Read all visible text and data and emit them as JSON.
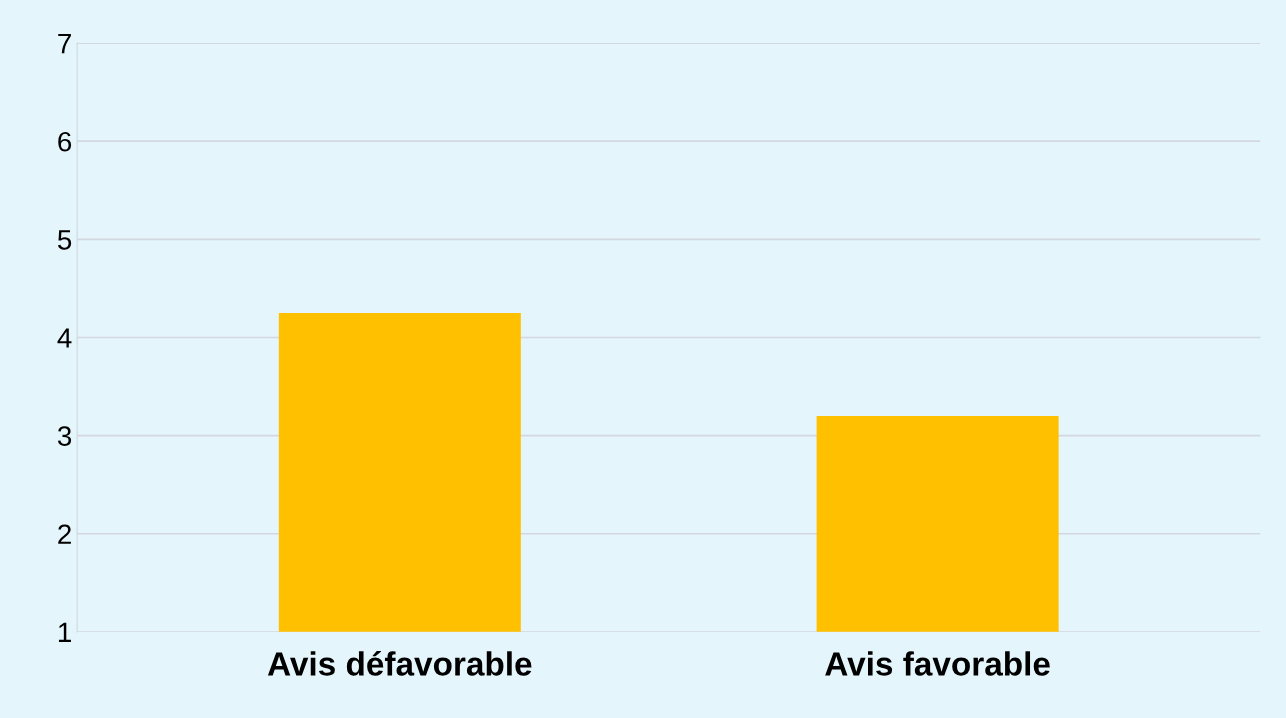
{
  "chart_data": {
    "type": "bar",
    "categories": [
      "Avis défavorable",
      "Avis favorable"
    ],
    "values": [
      4.25,
      3.2
    ],
    "color": "#ffc000",
    "ylim": [
      1,
      7
    ],
    "yticks": [
      1,
      2,
      3,
      4,
      5,
      6,
      7
    ],
    "grid": "y",
    "legend": false
  }
}
